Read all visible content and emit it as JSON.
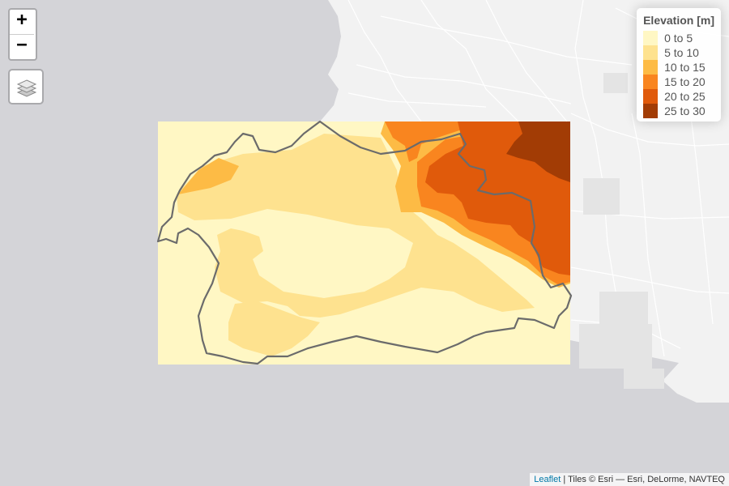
{
  "map": {
    "zoom_in_label": "+",
    "zoom_out_label": "−",
    "layers_control": "layers-icon",
    "colors": {
      "land": "#f2f2f2",
      "water": "#d4d4d8",
      "roads": "#ffffff",
      "boundary": "#6b6b6b"
    }
  },
  "legend": {
    "title": "Elevation [m]",
    "classes": [
      {
        "label": "0 to 5",
        "color": "#fff7c4"
      },
      {
        "label": "5 to 10",
        "color": "#fee28f"
      },
      {
        "label": "10 to 15",
        "color": "#fdbb45"
      },
      {
        "label": "15 to 20",
        "color": "#f9851f"
      },
      {
        "label": "20 to 25",
        "color": "#e05a0b"
      },
      {
        "label": "25 to 30",
        "color": "#a23c05"
      }
    ]
  },
  "attribution": {
    "link_text": "Leaflet",
    "separator": " | ",
    "text": "Tiles © Esri — Esri, DeLorme, NAVTEQ"
  }
}
